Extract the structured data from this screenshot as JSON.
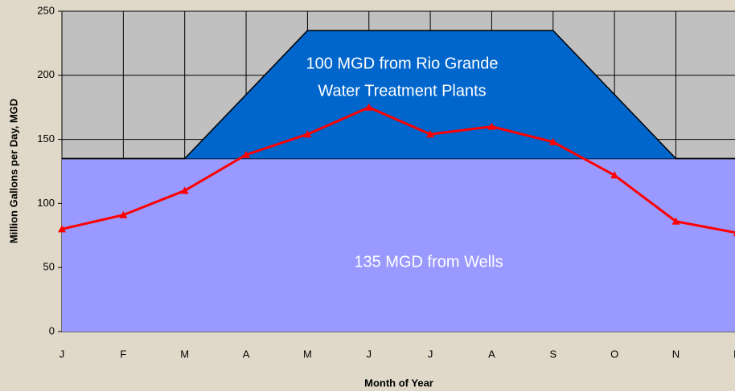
{
  "chart_data": {
    "type": "area",
    "x_label": "Month of Year",
    "y_label": "Million Gallons per Day, MGD",
    "annotations": [
      "100 MGD from Rio Grande",
      "Water Treatment Plants",
      "135 MGD from Wells"
    ],
    "categories": [
      "J",
      "F",
      "M",
      "A",
      "M",
      "J",
      "J",
      "A",
      "S",
      "O",
      "N",
      "D"
    ],
    "series": [
      {
        "type": "area",
        "color": "#9999ff",
        "values": [
          135,
          135,
          135,
          135,
          135,
          135,
          135,
          135,
          135,
          135,
          135,
          135
        ]
      },
      {
        "type": "area",
        "color": "#0066cc",
        "values": [
          0,
          0,
          0,
          50,
          100,
          100,
          100,
          100,
          100,
          50,
          0,
          0
        ]
      },
      {
        "type": "line",
        "color": "#ff0000",
        "values": [
          80,
          91,
          110,
          138,
          154,
          175,
          154,
          160,
          148,
          122,
          86,
          77
        ]
      }
    ],
    "ylim": [
      0,
      250
    ],
    "yticks": [
      0,
      50,
      100,
      150,
      200,
      250
    ],
    "grid": true
  }
}
